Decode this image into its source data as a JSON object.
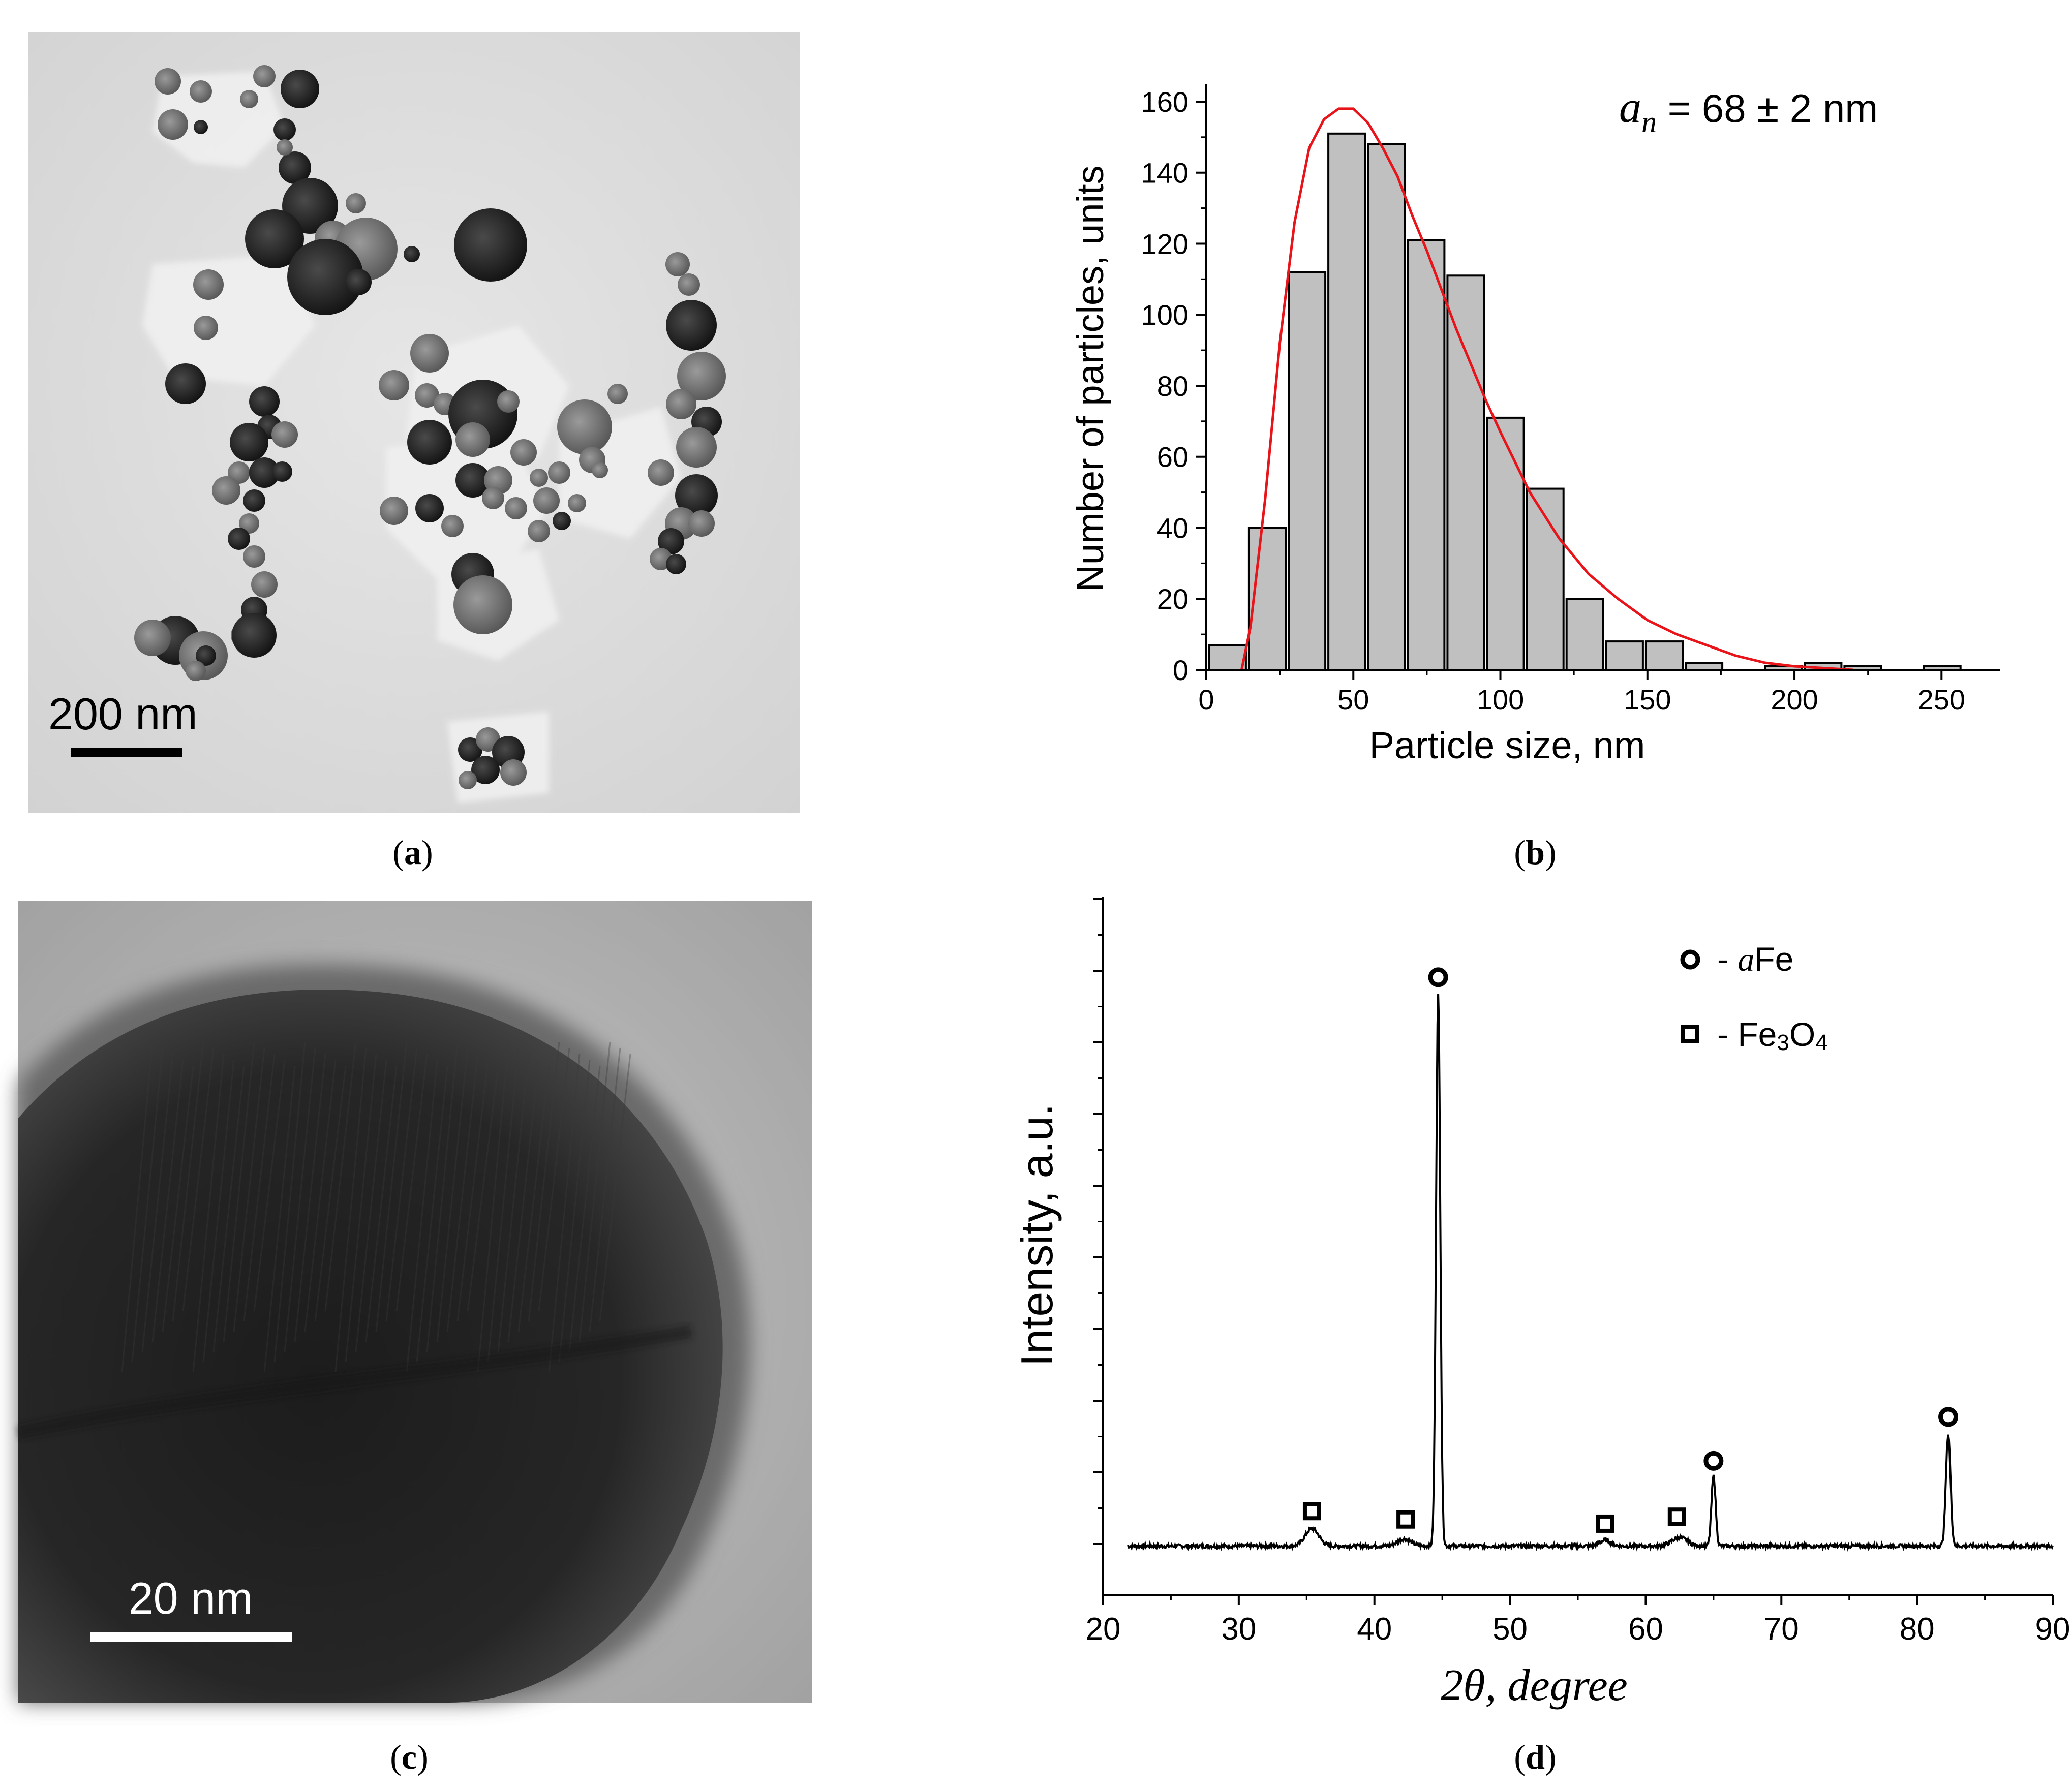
{
  "panel_a": {
    "label_open": "(",
    "label_letter": "a",
    "label_close": ")",
    "scalebar_text": "200 nm"
  },
  "panel_b": {
    "label_open": "(",
    "label_letter": "b",
    "label_close": ")",
    "annotation_symbol": "a",
    "annotation_subscript": "n",
    "annotation_value": " = 68 ± 2 nm"
  },
  "panel_c": {
    "label_open": "(",
    "label_letter": "c",
    "label_close": ")",
    "scalebar_text": "20 nm"
  },
  "panel_d": {
    "label_open": "(",
    "label_letter": "d",
    "label_close": ")",
    "legend": [
      {
        "marker": "circle",
        "dash": "- ",
        "symbol": "a",
        "text": "Fe"
      },
      {
        "marker": "square",
        "dash": "- ",
        "text_pre": "Fe",
        "sub1": "3",
        "text_mid": "O",
        "sub2": "4"
      }
    ]
  },
  "chart_data": [
    {
      "type": "bar",
      "panel": "b",
      "xlabel": "Particle size, nm",
      "ylabel": "Number of particles, units",
      "xlim": [
        0,
        270
      ],
      "ylim": [
        0,
        165
      ],
      "xticks": [
        0,
        50,
        100,
        150,
        200,
        250
      ],
      "yticks": [
        0,
        20,
        40,
        60,
        80,
        100,
        120,
        140,
        160
      ],
      "bin_width": 13.5,
      "bin_starts": [
        1,
        14.5,
        28,
        41.5,
        55,
        68.5,
        82,
        95.5,
        109,
        122.5,
        136,
        149.5,
        163,
        190,
        203.5,
        217,
        244
      ],
      "values": [
        7,
        40,
        112,
        151,
        148,
        121,
        111,
        71,
        51,
        20,
        8,
        8,
        2,
        1,
        2,
        1,
        1
      ],
      "fit_curve": {
        "color": "#e8141a",
        "x": [
          12,
          15,
          20,
          25,
          30,
          35,
          40,
          45,
          50,
          55,
          60,
          65,
          70,
          75,
          80,
          85,
          90,
          95,
          100,
          110,
          120,
          130,
          140,
          150,
          160,
          170,
          180,
          190,
          200,
          210,
          220
        ],
        "y": [
          0,
          12,
          48,
          92,
          126,
          147,
          155,
          158,
          158,
          154,
          147,
          139,
          128,
          118,
          107,
          96,
          86,
          76,
          67,
          50,
          37,
          27,
          20,
          14,
          10,
          7,
          4,
          2,
          1,
          0.5,
          0
        ]
      },
      "bar_color": "#c0c0c0"
    },
    {
      "type": "line",
      "panel": "d",
      "xlabel": "2θ, degree",
      "ylabel": "Intensity, a.u.",
      "xlim": [
        20,
        90
      ],
      "xticks": [
        20,
        30,
        40,
        50,
        60,
        70,
        80,
        90
      ],
      "y_axis_unlabeled": true,
      "ylim": [
        0,
        100
      ],
      "baseline": 7,
      "peaks": [
        {
          "x": 35.4,
          "height": 2.5,
          "width": 0.7,
          "phase": "Fe3O4"
        },
        {
          "x": 42.2,
          "height": 1.0,
          "width": 0.7,
          "phase": "Fe3O4"
        },
        {
          "x": 44.7,
          "height": 79,
          "width": 0.22,
          "phase": "aFe"
        },
        {
          "x": 57.0,
          "height": 0.8,
          "width": 0.6,
          "phase": "Fe3O4"
        },
        {
          "x": 62.5,
          "height": 1.2,
          "width": 0.8,
          "phase": "Fe3O4"
        },
        {
          "x": 65.0,
          "height": 10,
          "width": 0.22,
          "phase": "aFe"
        },
        {
          "x": 82.3,
          "height": 16,
          "width": 0.24,
          "phase": "aFe"
        }
      ],
      "markers": [
        {
          "x": 35.4,
          "y": 12.0,
          "type": "square"
        },
        {
          "x": 42.3,
          "y": 10.8,
          "type": "square"
        },
        {
          "x": 44.7,
          "y": 88.5,
          "type": "circle"
        },
        {
          "x": 57.0,
          "y": 10.2,
          "type": "square"
        },
        {
          "x": 62.3,
          "y": 11.2,
          "type": "square"
        },
        {
          "x": 65.0,
          "y": 19.2,
          "type": "circle"
        },
        {
          "x": 82.3,
          "y": 25.5,
          "type": "circle"
        }
      ]
    }
  ]
}
